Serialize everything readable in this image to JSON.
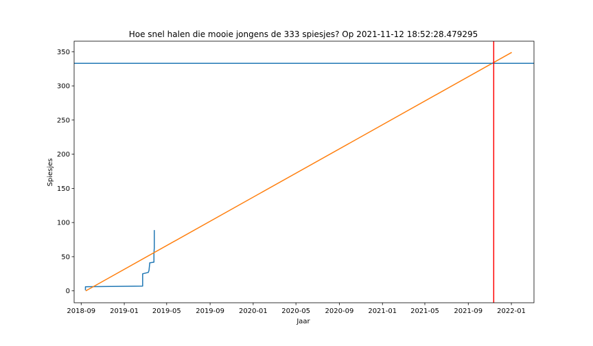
{
  "chart_data": {
    "type": "line",
    "title": "Hoe snel halen die mooie jongens de 333 spiesjes? Op 2021-11-12 18:52:28.479295",
    "xlabel": "Jaar",
    "ylabel": "Spiesjes",
    "x_scale": "date",
    "xlim": [
      "2018-08-12",
      "2022-03-06"
    ],
    "ylim": [
      -17.4,
      365.4
    ],
    "x_ticks": [
      "2018-09",
      "2019-01",
      "2019-05",
      "2019-09",
      "2020-01",
      "2020-05",
      "2020-09",
      "2021-01",
      "2021-05",
      "2021-09",
      "2022-01"
    ],
    "y_ticks": [
      0,
      50,
      100,
      150,
      200,
      250,
      300,
      350
    ],
    "grid": false,
    "legend": "none",
    "series": [
      {
        "color": "#1f77b4",
        "x": [
          "2018-09-13",
          "2018-09-13",
          "2019-02-22",
          "2019-02-22",
          "2019-03-10",
          "2019-03-12",
          "2019-03-14",
          "2019-03-14",
          "2019-03-26",
          "2019-03-26",
          "2019-03-27",
          "2019-03-27",
          "2019-03-27"
        ],
        "values": [
          1,
          6,
          7,
          25,
          27,
          30,
          40,
          41,
          42,
          55,
          63,
          85,
          89
        ]
      },
      {
        "color": "#ff7f0e",
        "x": [
          "2018-09-14",
          "2022-01-02"
        ],
        "values": [
          0,
          349
        ]
      }
    ],
    "reference_lines": [
      {
        "orientation": "horizontal",
        "value": 333,
        "color": "#1f77b4"
      },
      {
        "orientation": "vertical",
        "value": "2021-11-12",
        "color": "#ff0000"
      }
    ]
  }
}
